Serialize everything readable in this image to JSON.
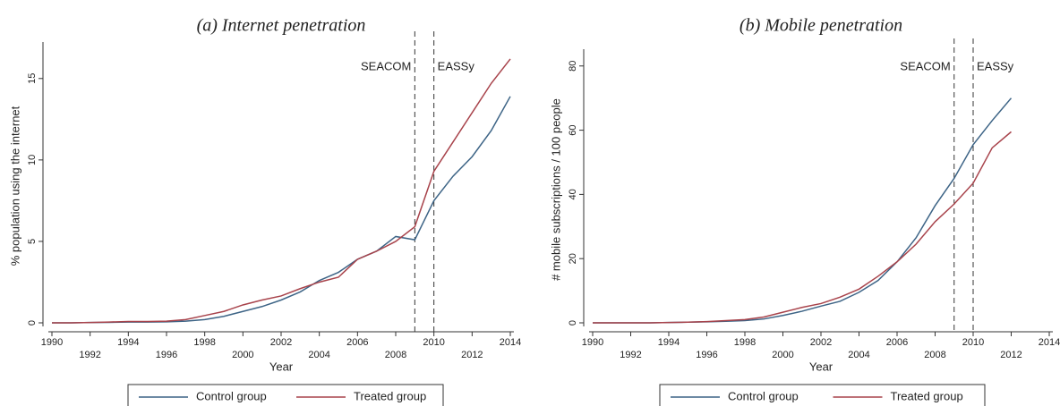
{
  "chart_data": [
    {
      "type": "line",
      "title": "(a) Internet penetration",
      "x_label": "Year",
      "y_label": "% population using the internet",
      "x": [
        1990,
        1991,
        1992,
        1993,
        1994,
        1995,
        1996,
        1997,
        1998,
        1999,
        2000,
        2001,
        2002,
        2003,
        2004,
        2005,
        2006,
        2007,
        2008,
        2009,
        2010,
        2011,
        2012,
        2013,
        2014
      ],
      "series": [
        {
          "name": "Control group",
          "color": "#3d6486",
          "values": [
            0,
            0,
            0.02,
            0.03,
            0.05,
            0.05,
            0.06,
            0.1,
            0.2,
            0.4,
            0.7,
            1.0,
            1.4,
            1.9,
            2.6,
            3.1,
            3.9,
            4.4,
            5.3,
            5.1,
            7.5,
            9.0,
            10.2,
            11.8,
            13.9
          ]
        },
        {
          "name": "Treated group",
          "color": "#a8434b",
          "values": [
            0,
            0,
            0.02,
            0.05,
            0.08,
            0.08,
            0.1,
            0.2,
            0.45,
            0.7,
            1.1,
            1.4,
            1.65,
            2.1,
            2.5,
            2.8,
            3.9,
            4.4,
            5.0,
            5.9,
            9.3,
            11.1,
            12.9,
            14.7,
            16.2
          ]
        }
      ],
      "xlim": [
        1990,
        2014
      ],
      "xticks": [
        1990,
        1992,
        1994,
        1996,
        1998,
        2000,
        2002,
        2004,
        2006,
        2008,
        2010,
        2012,
        2014
      ],
      "ylim": [
        0,
        16.8
      ],
      "yticks": [
        0,
        5,
        10,
        15
      ],
      "annotations": [
        {
          "x": 2009,
          "label": "SEACOM"
        },
        {
          "x": 2010,
          "label": "EASSy"
        }
      ]
    },
    {
      "type": "line",
      "title": "(b) Mobile penetration",
      "x_label": "Year",
      "y_label": "# mobile subscriptions / 100 people",
      "x": [
        1990,
        1991,
        1992,
        1993,
        1994,
        1995,
        1996,
        1997,
        1998,
        1999,
        2000,
        2001,
        2002,
        2003,
        2004,
        2005,
        2006,
        2007,
        2008,
        2009,
        2010,
        2011,
        2012
      ],
      "series": [
        {
          "name": "Control group",
          "color": "#3d6486",
          "values": [
            0,
            0,
            0,
            0,
            0.1,
            0.2,
            0.3,
            0.5,
            0.7,
            1.2,
            2.3,
            3.6,
            5.2,
            6.7,
            9.5,
            13.2,
            19,
            26.5,
            36.5,
            45,
            55.5,
            63,
            70
          ]
        },
        {
          "name": "Treated group",
          "color": "#a8434b",
          "values": [
            0,
            0,
            0,
            0,
            0.1,
            0.2,
            0.4,
            0.7,
            1.0,
            1.8,
            3.3,
            4.8,
            6.0,
            8.0,
            10.5,
            14.5,
            19,
            24.5,
            31.5,
            37,
            43.5,
            54.5,
            59.5
          ]
        }
      ],
      "xlim": [
        1990,
        2014
      ],
      "xticks": [
        1990,
        1992,
        1994,
        1996,
        1998,
        2000,
        2002,
        2004,
        2006,
        2008,
        2010,
        2012,
        2014
      ],
      "ylim": [
        0,
        83
      ],
      "yticks": [
        0,
        20,
        40,
        60,
        80
      ],
      "annotations": [
        {
          "x": 2009,
          "label": "SEACOM"
        },
        {
          "x": 2010,
          "label": "EASSy"
        }
      ]
    }
  ]
}
